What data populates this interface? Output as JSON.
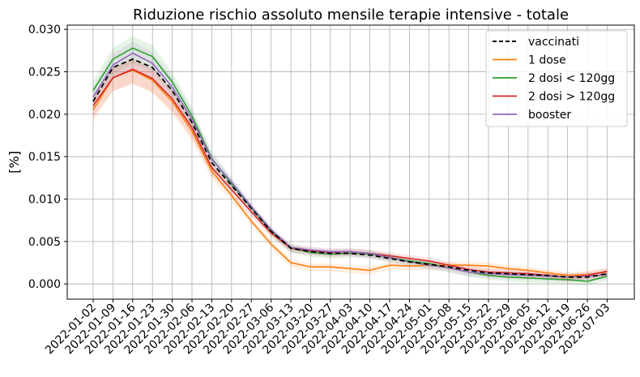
{
  "chart_data": {
    "type": "line",
    "title": "Riduzione rischio assoluto mensile terapie intensive - totale",
    "xlabel": "",
    "ylabel": "[%]",
    "ylim": [
      -0.0018,
      0.0305
    ],
    "yticks": [
      "0.000",
      "0.005",
      "0.010",
      "0.015",
      "0.020",
      "0.025",
      "0.030"
    ],
    "grid": true,
    "legend_position": "top-right",
    "x": [
      "2022-01-02",
      "2022-01-09",
      "2022-01-16",
      "2022-01-23",
      "2022-01-30",
      "2022-02-06",
      "2022-02-13",
      "2022-02-20",
      "2022-02-27",
      "2022-03-06",
      "2022-03-13",
      "2022-03-20",
      "2022-03-27",
      "2022-04-03",
      "2022-04-10",
      "2022-04-17",
      "2022-04-24",
      "2022-05-01",
      "2022-05-08",
      "2022-05-15",
      "2022-05-22",
      "2022-05-29",
      "2022-06-05",
      "2022-06-12",
      "2022-06-19",
      "2022-06-26",
      "2022-07-03"
    ],
    "series": [
      {
        "name": "vaccinati",
        "color": "#000000",
        "dash": "6,4",
        "band": false,
        "values": [
          0.0215,
          0.0255,
          0.0265,
          0.0255,
          0.0228,
          0.019,
          0.0143,
          0.0116,
          0.0089,
          0.0062,
          0.0042,
          0.0038,
          0.0036,
          0.0036,
          0.0034,
          0.003,
          0.0026,
          0.0023,
          0.002,
          0.0016,
          0.0013,
          0.0012,
          0.0011,
          0.001,
          0.0008,
          0.0008,
          0.0012
        ]
      },
      {
        "name": "1 dose",
        "color": "#ff7f0e",
        "dash": "",
        "band": true,
        "values": [
          0.0205,
          0.0243,
          0.0252,
          0.024,
          0.0215,
          0.018,
          0.0133,
          0.0104,
          0.0074,
          0.0047,
          0.0025,
          0.002,
          0.002,
          0.0018,
          0.0016,
          0.0022,
          0.0021,
          0.0022,
          0.0022,
          0.0022,
          0.0021,
          0.0018,
          0.0016,
          0.0013,
          0.001,
          0.0011,
          0.0014
        ]
      },
      {
        "name": "2 dosi < 120gg",
        "color": "#2ca02c",
        "dash": "",
        "band": true,
        "values": [
          0.0228,
          0.0265,
          0.0278,
          0.0268,
          0.0238,
          0.0198,
          0.0148,
          0.0118,
          0.009,
          0.0062,
          0.0042,
          0.0037,
          0.0035,
          0.0036,
          0.0035,
          0.0031,
          0.0027,
          0.0024,
          0.0019,
          0.0014,
          0.001,
          0.0008,
          0.0007,
          0.0006,
          0.0005,
          0.0003,
          0.0009
        ]
      },
      {
        "name": "2 dosi > 120gg",
        "color": "#d62728",
        "dash": "",
        "band": true,
        "values": [
          0.021,
          0.0243,
          0.0253,
          0.0242,
          0.0218,
          0.0184,
          0.0137,
          0.0111,
          0.0085,
          0.006,
          0.0042,
          0.0039,
          0.0037,
          0.0038,
          0.0036,
          0.0033,
          0.003,
          0.0027,
          0.0022,
          0.0017,
          0.0014,
          0.0013,
          0.0012,
          0.001,
          0.0008,
          0.001,
          0.0015
        ]
      },
      {
        "name": "booster",
        "color": "#9467bd",
        "dash": "",
        "band": true,
        "values": [
          0.022,
          0.0258,
          0.0272,
          0.026,
          0.0232,
          0.0194,
          0.0147,
          0.012,
          0.0091,
          0.0064,
          0.0043,
          0.004,
          0.0038,
          0.0038,
          0.0036,
          0.0031,
          0.0026,
          0.0022,
          0.0019,
          0.0014,
          0.0012,
          0.0011,
          0.001,
          0.0009,
          0.0008,
          0.0009,
          0.0011
        ]
      }
    ]
  }
}
